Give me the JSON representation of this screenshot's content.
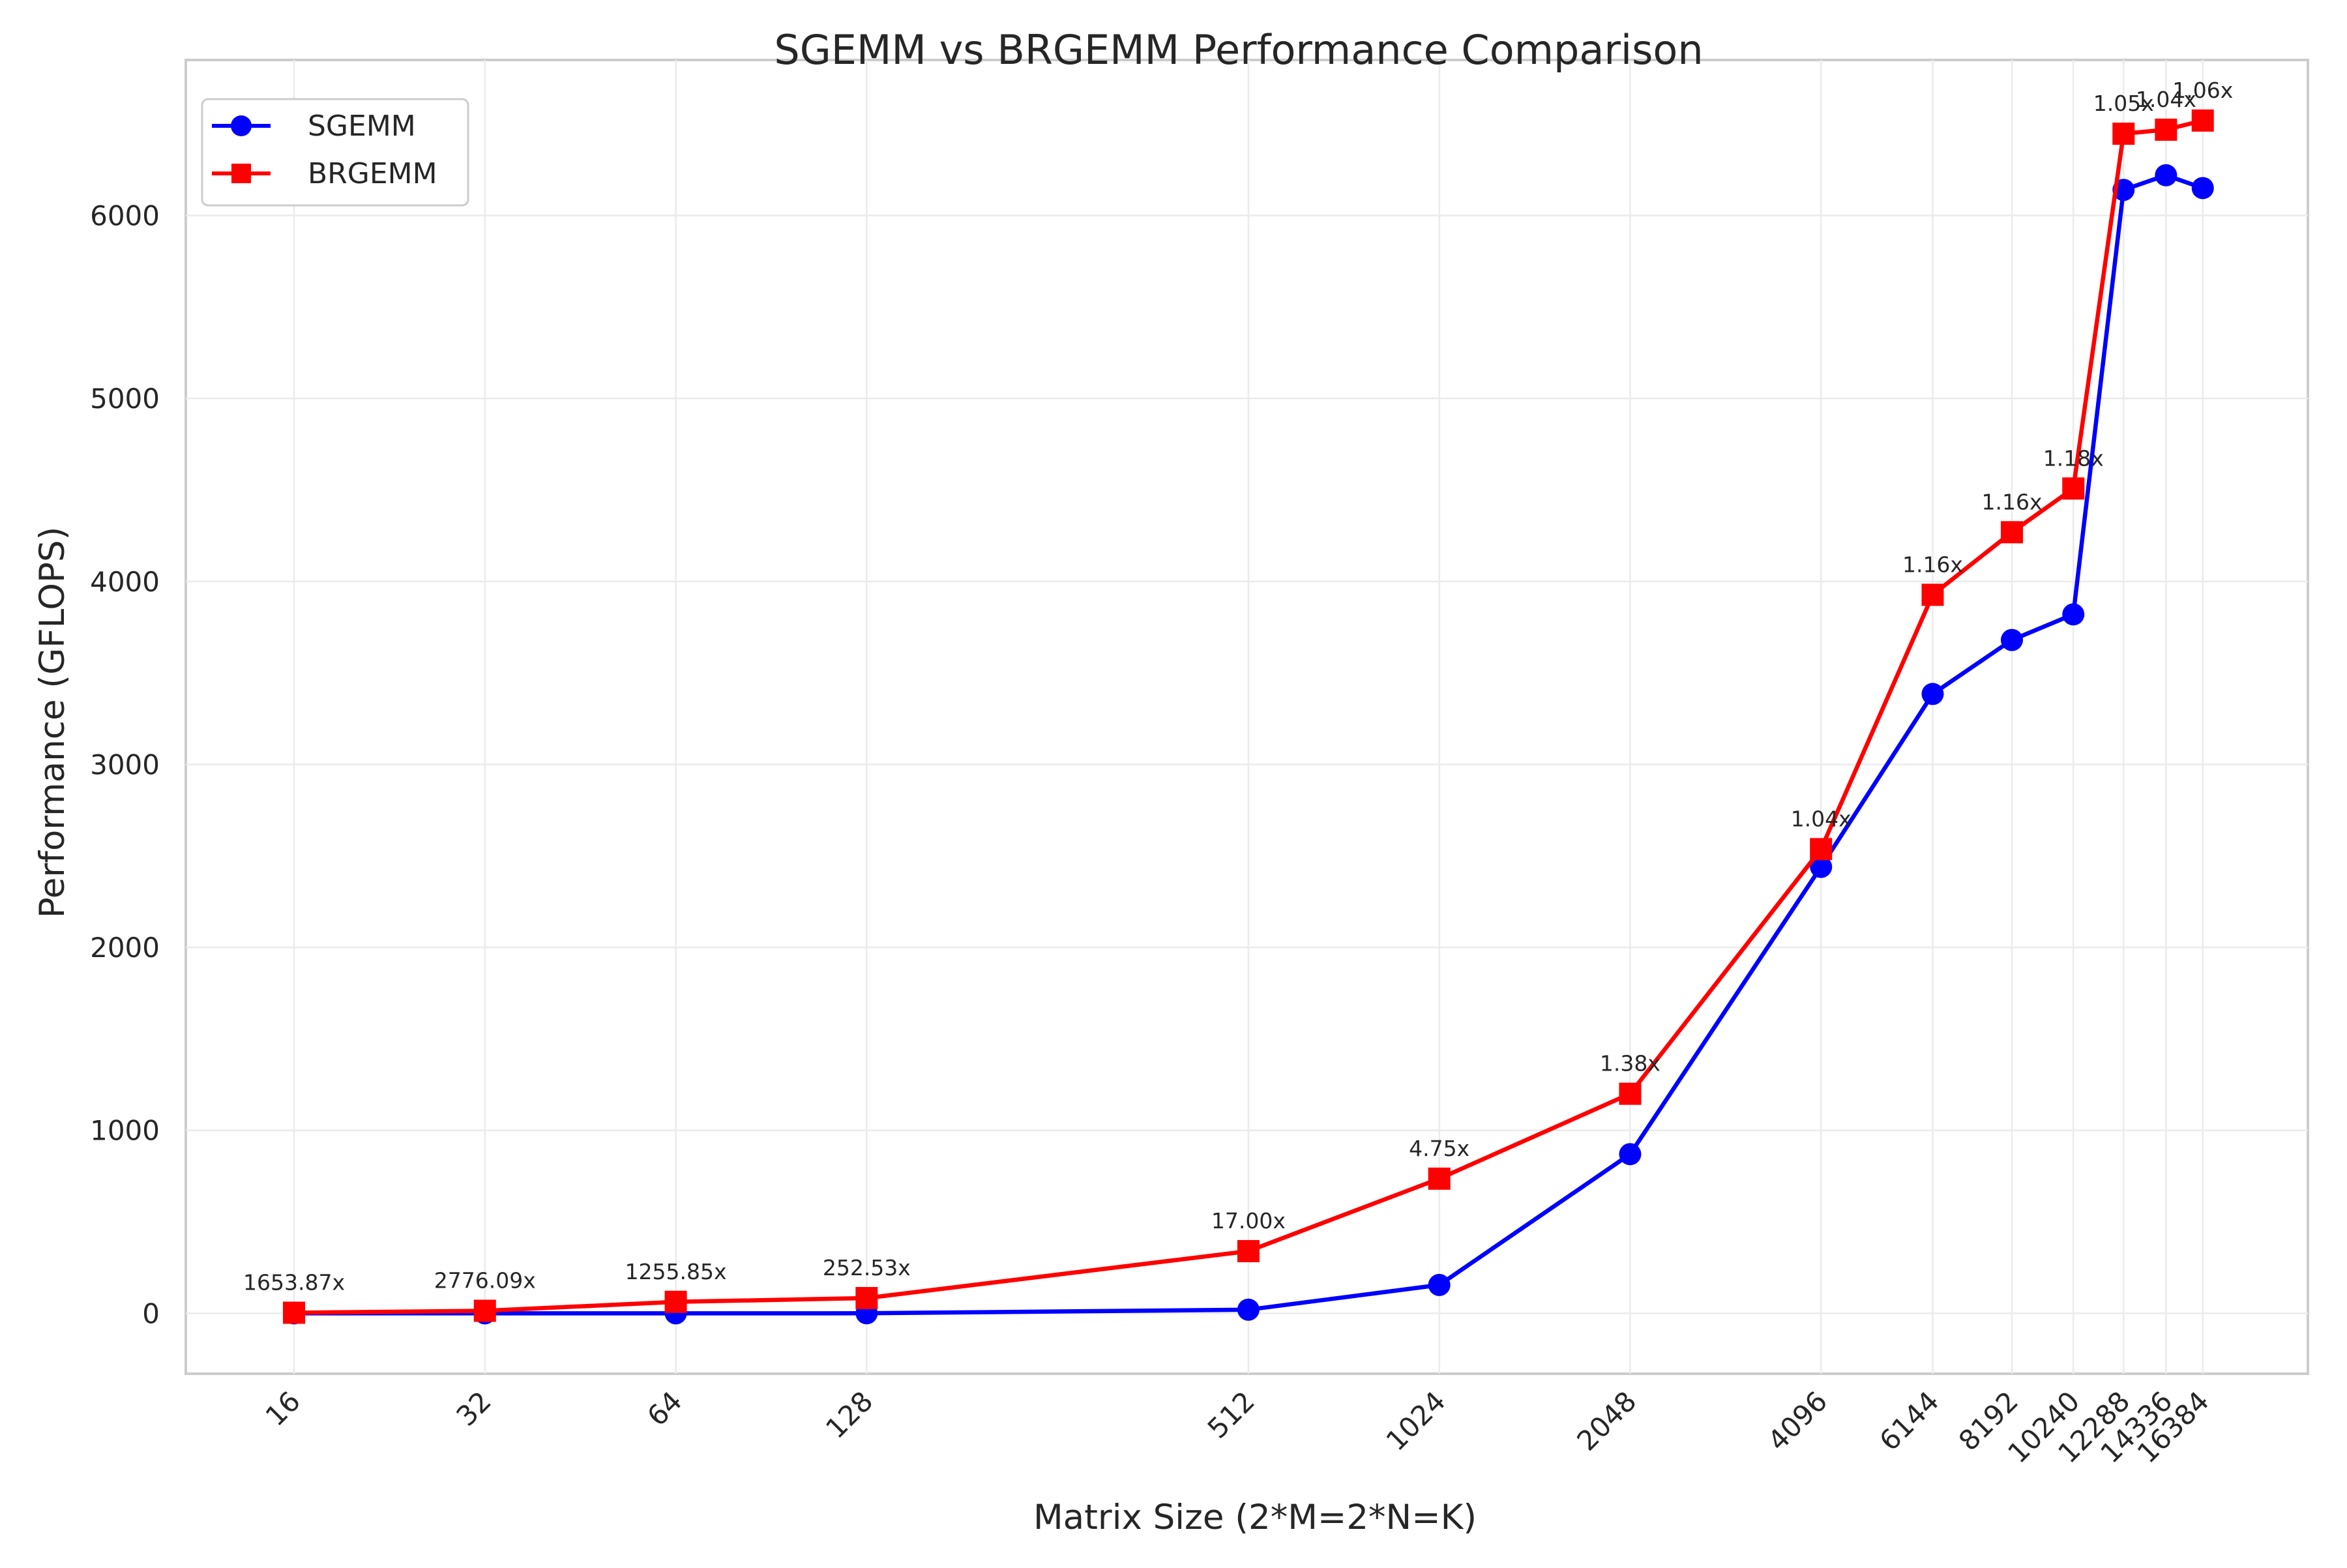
{
  "chart_data": {
    "type": "line",
    "title": "SGEMM vs BRGEMM Performance Comparison",
    "xlabel": "Matrix Size (2*M=2*N=K)",
    "ylabel": "Performance (GFLOPS)",
    "x_scale": "log2",
    "xlim": [
      10.8,
      24000
    ],
    "ylim": [
      -330,
      6850
    ],
    "categories": [
      "16",
      "32",
      "64",
      "128",
      "512",
      "1024",
      "2048",
      "4096",
      "6144",
      "8192",
      "10240",
      "12288",
      "14336",
      "16384"
    ],
    "x": [
      16,
      32,
      64,
      128,
      512,
      1024,
      2048,
      4096,
      6144,
      8192,
      10240,
      12288,
      14336,
      16384
    ],
    "yticks": [
      0,
      1000,
      2000,
      3000,
      4000,
      5000,
      6000
    ],
    "grid": true,
    "legend_position": "top-left",
    "series": [
      {
        "name": "SGEMM",
        "color": "#0000ff",
        "marker": "circle",
        "values": [
          0.002,
          0.005,
          0.05,
          0.33,
          20,
          155,
          870,
          2440,
          3385,
          3680,
          3820,
          6140,
          6220,
          6150
        ]
      },
      {
        "name": "BRGEMM",
        "color": "#ff0000",
        "marker": "square",
        "values": [
          3.3,
          13.9,
          62.8,
          83.3,
          340,
          736,
          1200,
          2537,
          3927,
          4269,
          4508,
          6447,
          6469,
          6519
        ]
      }
    ],
    "annotations": [
      "1653.87x",
      "2776.09x",
      "1255.85x",
      "252.53x",
      "17.00x",
      "4.75x",
      "1.38x",
      "1.04x",
      "1.16x",
      "1.16x",
      "1.18x",
      "1.05x",
      "1.04x",
      "1.06x"
    ]
  }
}
